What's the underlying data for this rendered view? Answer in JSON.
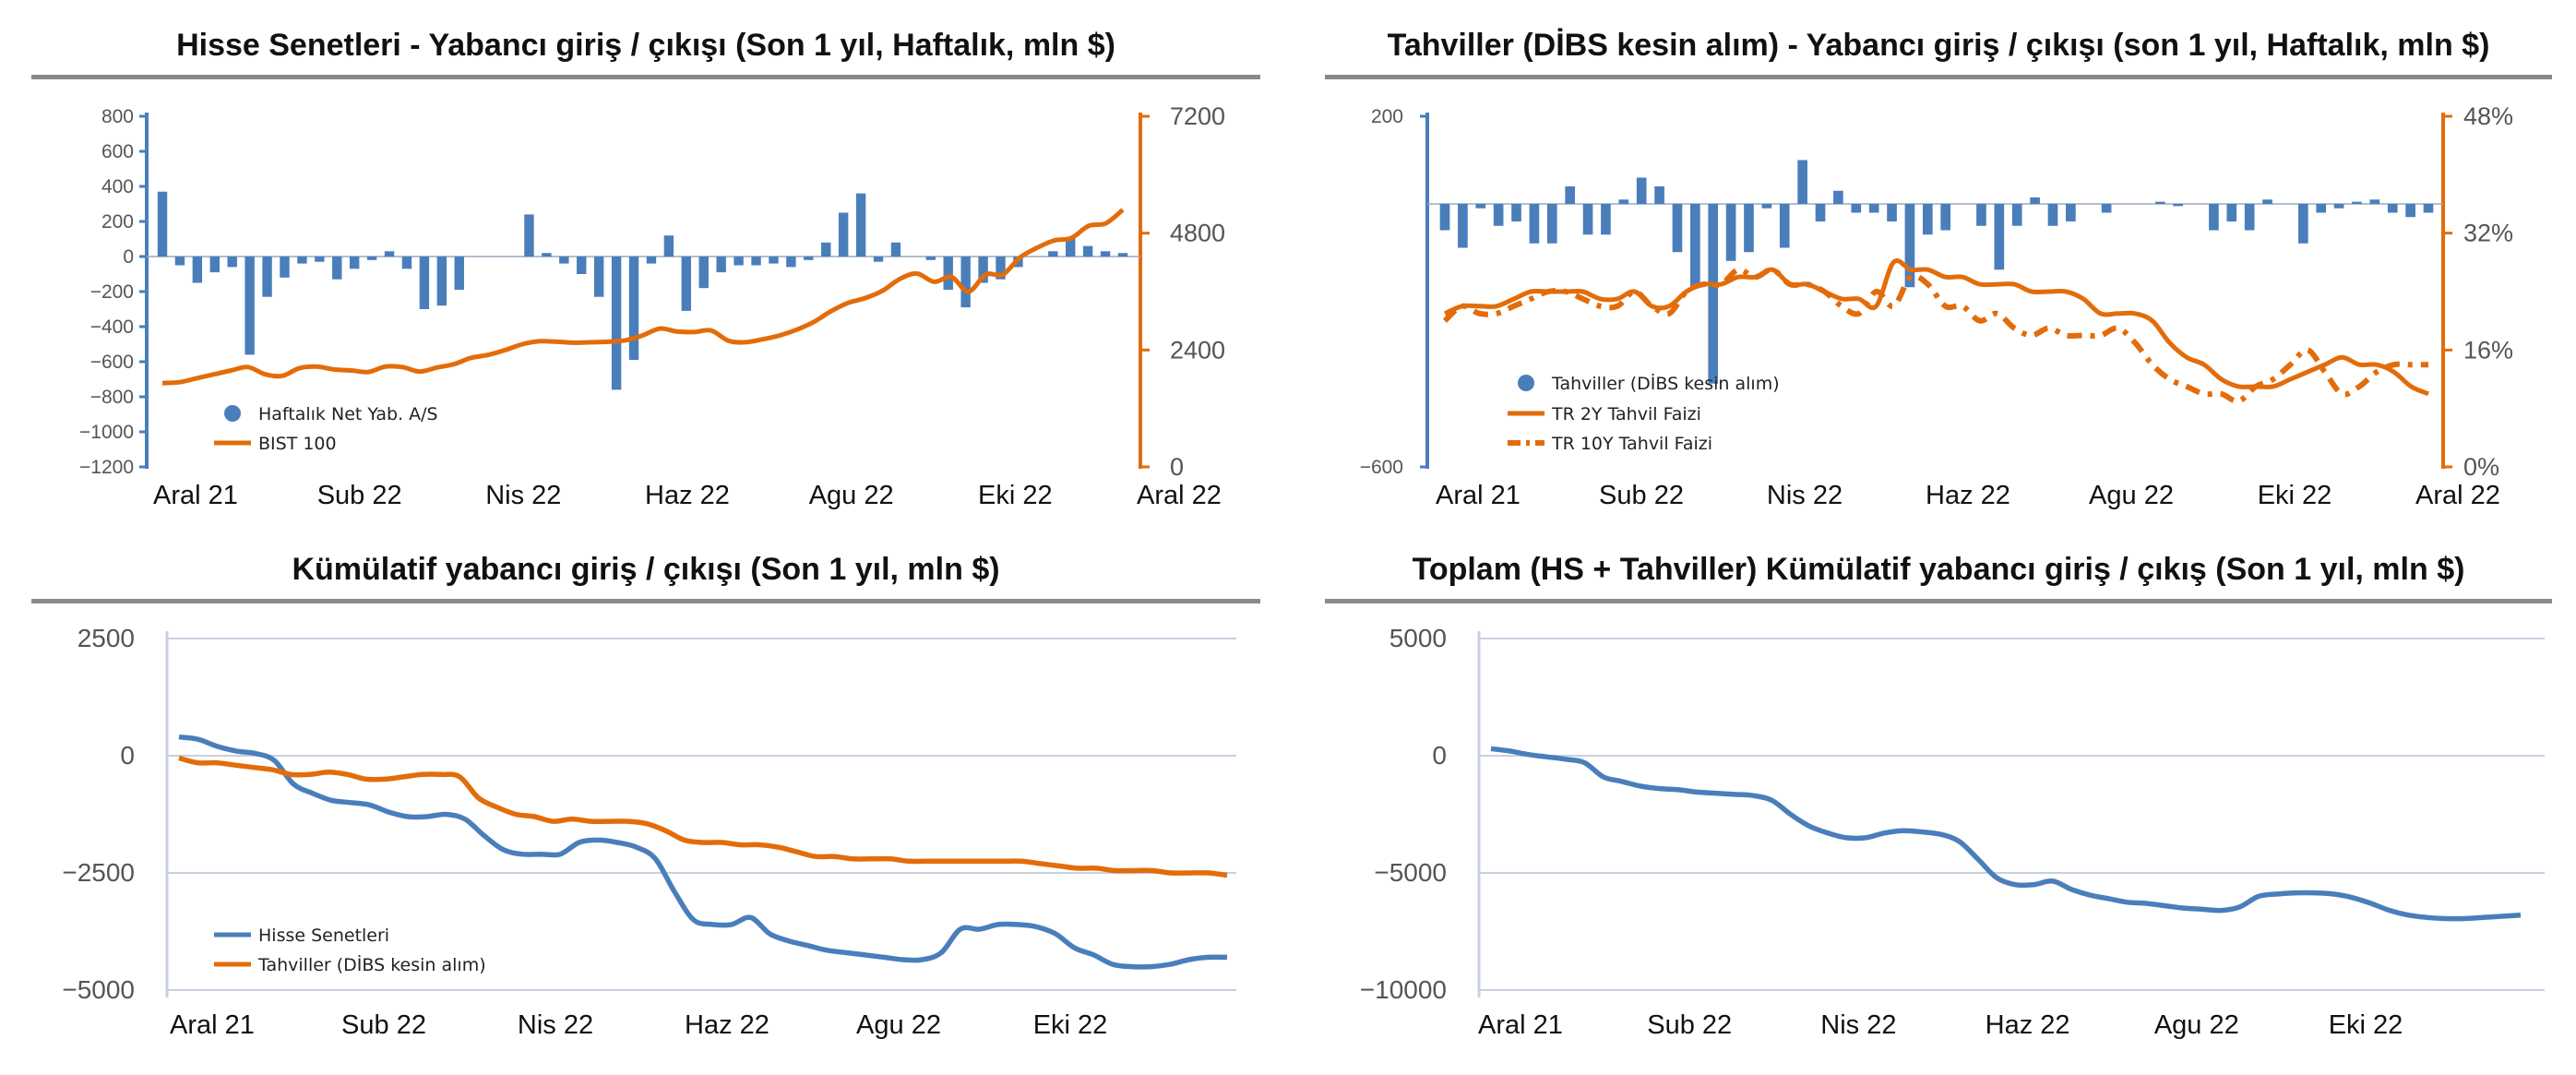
{
  "colors": {
    "blue": "#4a7ebb",
    "orange": "#e36c0a",
    "rule": "#8a8a8a",
    "axis": "#c8d0e0"
  },
  "chart_data": [
    {
      "type": "bar",
      "title": "Hisse Senetleri - Yabancı giriş / çıkışı (Son 1 yıl, Haftalık, mln $)",
      "x_labels": [
        "Aral 21",
        "Sub 22",
        "Nis 22",
        "Haz 22",
        "Agu 22",
        "Eki 22",
        "Aral 22"
      ],
      "left_axis": {
        "min": -1200,
        "max": 800,
        "ticks": [
          800,
          600,
          400,
          200,
          0,
          -200,
          -400,
          -600,
          -800,
          -1000,
          -1200
        ]
      },
      "right_axis": {
        "min": 0,
        "max": 7200,
        "ticks": [
          7200,
          4800,
          2400,
          0
        ]
      },
      "legend_position": "bottom-left",
      "series": [
        {
          "name": "Haftalık Net Yab. A/S",
          "kind": "bar",
          "axis": "left",
          "values": [
            370,
            -50,
            -150,
            -90,
            -60,
            -560,
            -230,
            -120,
            -40,
            -30,
            -130,
            -70,
            -20,
            30,
            -70,
            -300,
            -280,
            -190,
            0,
            0,
            0,
            240,
            20,
            -40,
            -100,
            -230,
            -760,
            -590,
            -40,
            120,
            -310,
            -180,
            -90,
            -50,
            -50,
            -40,
            -60,
            -20,
            80,
            250,
            360,
            -30,
            80,
            0,
            -20,
            -190,
            -290,
            -150,
            -130,
            -60,
            0,
            30,
            110,
            60,
            30,
            20
          ]
        },
        {
          "name": "BIST 100",
          "kind": "line",
          "axis": "right",
          "values": [
            1720,
            1740,
            1820,
            1900,
            1980,
            2050,
            1900,
            1870,
            2030,
            2060,
            2000,
            1980,
            1950,
            2060,
            2050,
            1960,
            2040,
            2110,
            2240,
            2300,
            2400,
            2520,
            2580,
            2570,
            2550,
            2560,
            2570,
            2600,
            2700,
            2840,
            2780,
            2770,
            2800,
            2590,
            2560,
            2620,
            2700,
            2820,
            2980,
            3200,
            3370,
            3470,
            3620,
            3860,
            3970,
            3800,
            3900,
            3600,
            3950,
            3950,
            4300,
            4500,
            4650,
            4700,
            4950,
            5000,
            5280
          ]
        }
      ]
    },
    {
      "type": "bar",
      "title": "Tahviller (DİBS kesin alım) - Yabancı giriş / çıkışı (son 1 yıl, Haftalık, mln $)",
      "x_labels": [
        "Aral 21",
        "Sub 22",
        "Nis 22",
        "Haz 22",
        "Agu 22",
        "Eki 22",
        "Aral 22"
      ],
      "left_axis": {
        "min": -600,
        "max": 200,
        "ticks": [
          200,
          -600
        ]
      },
      "right_axis": {
        "min": 0,
        "max": 48,
        "ticks": [
          "48%",
          "32%",
          "16%",
          "0%"
        ]
      },
      "legend_position": "bottom-left",
      "series": [
        {
          "name": "Tahviller (DİBS kesin alım)",
          "kind": "bar",
          "axis": "left",
          "values": [
            -60,
            -100,
            -10,
            -50,
            -40,
            -90,
            -90,
            40,
            -70,
            -70,
            10,
            60,
            40,
            -110,
            -190,
            -410,
            -130,
            -110,
            -10,
            -100,
            100,
            -40,
            30,
            -20,
            -20,
            -40,
            -190,
            -70,
            -60,
            0,
            -50,
            -150,
            -50,
            15,
            -50,
            -40,
            0,
            -20,
            0,
            0,
            5,
            -5,
            0,
            -60,
            -40,
            -60,
            10,
            0,
            -90,
            -20,
            -10,
            5,
            10,
            -20,
            -30,
            -20
          ]
        },
        {
          "name": "TR 2Y Tahvil Faizi",
          "kind": "line",
          "axis": "right",
          "style": "solid",
          "values": [
            21,
            22,
            22,
            22,
            23,
            24,
            24,
            24,
            24,
            23,
            23,
            24,
            22,
            22,
            24,
            25,
            25,
            26,
            26,
            27,
            25,
            25,
            24,
            23,
            23,
            22,
            28,
            27,
            27,
            26,
            26,
            25,
            25,
            25,
            24,
            24,
            24,
            23,
            21,
            21,
            21,
            20,
            17,
            15,
            14,
            12,
            11,
            11,
            11,
            12,
            13,
            14,
            15,
            14,
            14,
            13,
            11,
            10
          ]
        },
        {
          "name": "TR 10Y Tahvil Faizi",
          "kind": "line",
          "axis": "right",
          "style": "dashed",
          "values": [
            20,
            22,
            21,
            21,
            22,
            23,
            24,
            24,
            23,
            22,
            22,
            24,
            22,
            21,
            24,
            25,
            25,
            27,
            26,
            27,
            25,
            25,
            24,
            22,
            21,
            24,
            22,
            26,
            25,
            22,
            22,
            20,
            21,
            19,
            18,
            19,
            18,
            18,
            18,
            19,
            17,
            14,
            12,
            11,
            10,
            10,
            9,
            11,
            12,
            14,
            16,
            13,
            10,
            11,
            13,
            14,
            14,
            14
          ]
        }
      ]
    },
    {
      "type": "line",
      "title": "Kümülatif yabancı giriş / çıkışı (Son 1 yıl, mln $)",
      "x_labels": [
        "Aral 21",
        "Sub 22",
        "Nis 22",
        "Haz 22",
        "Agu 22",
        "Eki 22"
      ],
      "y_axis": {
        "min": -5000,
        "max": 2500,
        "ticks": [
          2500,
          0,
          -2500,
          -5000
        ]
      },
      "legend_position": "bottom-left",
      "series": [
        {
          "name": "Hisse Senetleri",
          "values": [
            400,
            350,
            200,
            100,
            50,
            -100,
            -600,
            -800,
            -950,
            -1000,
            -1050,
            -1200,
            -1300,
            -1300,
            -1250,
            -1350,
            -1700,
            -2000,
            -2100,
            -2100,
            -2100,
            -1850,
            -1800,
            -1850,
            -1950,
            -2200,
            -2900,
            -3500,
            -3600,
            -3600,
            -3450,
            -3800,
            -3950,
            -4050,
            -4150,
            -4200,
            -4250,
            -4300,
            -4350,
            -4350,
            -4200,
            -3700,
            -3700,
            -3600,
            -3600,
            -3650,
            -3800,
            -4100,
            -4250,
            -4450,
            -4500,
            -4500,
            -4450,
            -4350,
            -4300,
            -4300
          ]
        },
        {
          "name": "Tahviller (DİBS kesin alım)",
          "values": [
            -50,
            -150,
            -150,
            -200,
            -250,
            -300,
            -400,
            -400,
            -350,
            -400,
            -500,
            -500,
            -450,
            -400,
            -400,
            -450,
            -900,
            -1100,
            -1250,
            -1300,
            -1400,
            -1350,
            -1400,
            -1400,
            -1400,
            -1450,
            -1600,
            -1800,
            -1850,
            -1850,
            -1900,
            -1900,
            -1950,
            -2050,
            -2150,
            -2150,
            -2200,
            -2200,
            -2200,
            -2250,
            -2250,
            -2250,
            -2250,
            -2250,
            -2250,
            -2250,
            -2300,
            -2350,
            -2400,
            -2400,
            -2450,
            -2450,
            -2450,
            -2500,
            -2500,
            -2500,
            -2550
          ]
        }
      ]
    },
    {
      "type": "line",
      "title": "Toplam (HS + Tahviller) Kümülatif yabancı giriş / çıkış (Son 1 yıl, mln $)",
      "x_labels": [
        "Aral 21",
        "Sub 22",
        "Nis 22",
        "Haz 22",
        "Agu 22",
        "Eki 22"
      ],
      "y_axis": {
        "min": -10000,
        "max": 5000,
        "ticks": [
          5000,
          0,
          -5000,
          -10000
        ]
      },
      "series": [
        {
          "name": "",
          "values": [
            300,
            200,
            50,
            -50,
            -150,
            -300,
            -900,
            -1100,
            -1300,
            -1400,
            -1450,
            -1550,
            -1600,
            -1650,
            -1700,
            -1900,
            -2500,
            -3000,
            -3300,
            -3500,
            -3500,
            -3300,
            -3200,
            -3250,
            -3350,
            -3650,
            -4400,
            -5200,
            -5500,
            -5500,
            -5350,
            -5700,
            -5950,
            -6100,
            -6250,
            -6300,
            -6400,
            -6500,
            -6550,
            -6600,
            -6450,
            -6000,
            -5900,
            -5850,
            -5850,
            -5900,
            -6050,
            -6300,
            -6600,
            -6800,
            -6900,
            -6950,
            -6950,
            -6900,
            -6850,
            -6800
          ]
        }
      ]
    }
  ]
}
